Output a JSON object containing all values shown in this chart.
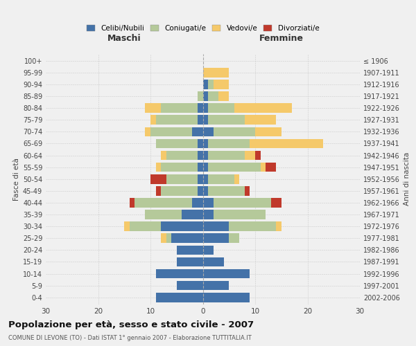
{
  "age_groups": [
    "0-4",
    "5-9",
    "10-14",
    "15-19",
    "20-24",
    "25-29",
    "30-34",
    "35-39",
    "40-44",
    "45-49",
    "50-54",
    "55-59",
    "60-64",
    "65-69",
    "70-74",
    "75-79",
    "80-84",
    "85-89",
    "90-94",
    "95-99",
    "100+"
  ],
  "birth_years": [
    "2002-2006",
    "1997-2001",
    "1992-1996",
    "1987-1991",
    "1982-1986",
    "1977-1981",
    "1972-1976",
    "1967-1971",
    "1962-1966",
    "1957-1961",
    "1952-1956",
    "1947-1951",
    "1942-1946",
    "1937-1941",
    "1932-1936",
    "1927-1931",
    "1922-1926",
    "1917-1921",
    "1912-1916",
    "1907-1911",
    "≤ 1906"
  ],
  "maschi": {
    "celibi": [
      9,
      5,
      9,
      5,
      5,
      6,
      8,
      4,
      2,
      1,
      1,
      1,
      1,
      1,
      2,
      1,
      1,
      0,
      0,
      0,
      0
    ],
    "coniugati": [
      0,
      0,
      0,
      0,
      0,
      1,
      6,
      7,
      11,
      7,
      6,
      7,
      6,
      8,
      8,
      8,
      7,
      1,
      0,
      0,
      0
    ],
    "vedovi": [
      0,
      0,
      0,
      0,
      0,
      1,
      1,
      0,
      0,
      0,
      0,
      1,
      1,
      0,
      1,
      1,
      3,
      0,
      0,
      0,
      0
    ],
    "divorziati": [
      0,
      0,
      0,
      0,
      0,
      0,
      0,
      0,
      1,
      1,
      3,
      0,
      0,
      0,
      0,
      0,
      0,
      0,
      0,
      0,
      0
    ]
  },
  "femmine": {
    "nubili": [
      9,
      5,
      9,
      4,
      2,
      5,
      5,
      2,
      2,
      1,
      1,
      1,
      1,
      1,
      2,
      1,
      1,
      1,
      1,
      0,
      0
    ],
    "coniugate": [
      0,
      0,
      0,
      0,
      0,
      2,
      9,
      10,
      11,
      7,
      5,
      10,
      7,
      8,
      8,
      7,
      5,
      2,
      1,
      0,
      0
    ],
    "vedove": [
      0,
      0,
      0,
      0,
      0,
      0,
      1,
      0,
      0,
      0,
      1,
      1,
      2,
      14,
      5,
      6,
      11,
      2,
      3,
      5,
      0
    ],
    "divorziate": [
      0,
      0,
      0,
      0,
      0,
      0,
      0,
      0,
      2,
      1,
      0,
      2,
      1,
      0,
      0,
      0,
      0,
      0,
      0,
      0,
      0
    ]
  },
  "colors": {
    "celibi": "#4472a8",
    "coniugati": "#b5c99a",
    "vedovi": "#f5c96a",
    "divorziati": "#c0392b"
  },
  "xlim": 30,
  "title": "Popolazione per età, sesso e stato civile - 2007",
  "subtitle": "COMUNE DI LEVONE (TO) - Dati ISTAT 1° gennaio 2007 - Elaborazione TUTTITALIA.IT",
  "ylabel_left": "Fasce di età",
  "ylabel_right": "Anni di nascita",
  "xlabel_left": "Maschi",
  "xlabel_right": "Femmine",
  "legend_labels": [
    "Celibi/Nubili",
    "Coniugati/e",
    "Vedovi/e",
    "Divorziati/e"
  ],
  "bg_color": "#f0f0f0",
  "bar_height": 0.8
}
